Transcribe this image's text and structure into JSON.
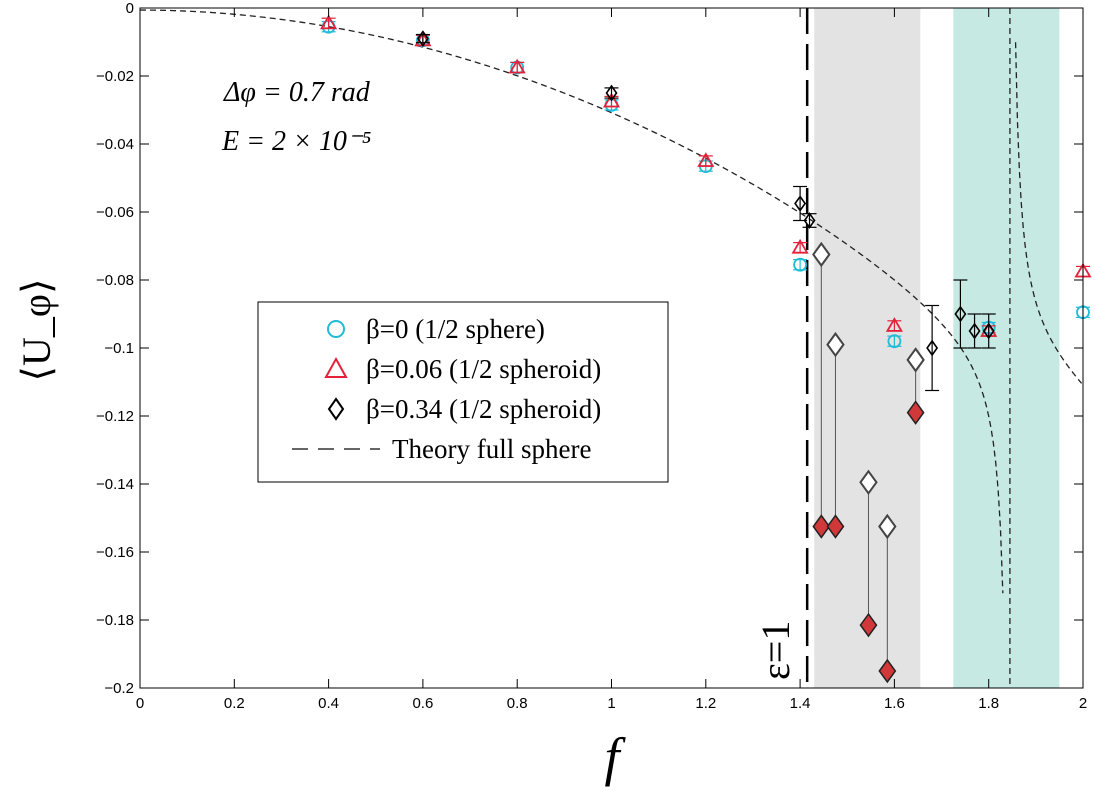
{
  "chart_data": {
    "type": "scatter",
    "xlabel": "f",
    "ylabel": "⟨U_φ⟩",
    "xlim": [
      0,
      2
    ],
    "ylim": [
      -0.2,
      0
    ],
    "grid": false,
    "legend_placement": "center-left",
    "x_ticks": [
      "0",
      "0.2",
      "0.4",
      "0.6",
      "0.8",
      "1",
      "1.2",
      "1.4",
      "1.6",
      "1.8",
      "2"
    ],
    "y_ticks": [
      "0",
      "−0.02",
      "−0.04",
      "−0.06",
      "−0.08",
      "−0.1",
      "−0.12",
      "−0.14",
      "−0.16",
      "−0.18",
      "−0.2"
    ],
    "annotations": {
      "delta_phi": "Δφ = 0.7 rad",
      "ekman": "E = 2 × 10⁻⁵",
      "epsilon_label": "ε=1"
    },
    "epsilon_line_x": 1.415,
    "shaded_regions": [
      {
        "x": [
          1.43,
          1.655
        ],
        "color": "#e3e3e3"
      },
      {
        "x": [
          1.725,
          1.95
        ],
        "color": "#c6e9e3"
      }
    ],
    "series": [
      {
        "name": "β=0 (1/2 sphere)",
        "marker": "circle",
        "color": "#22bcd6",
        "points": [
          {
            "x": 0.4,
            "y": -0.0055,
            "err": 0.0015
          },
          {
            "x": 0.6,
            "y": -0.0095,
            "err": 0.0015
          },
          {
            "x": 0.8,
            "y": -0.0175,
            "err": 0.0015
          },
          {
            "x": 1.0,
            "y": -0.0285,
            "err": 0.0015
          },
          {
            "x": 1.2,
            "y": -0.0465,
            "err": 0.0015
          },
          {
            "x": 1.4,
            "y": -0.0755,
            "err": 0.0015
          },
          {
            "x": 1.6,
            "y": -0.098,
            "err": 0.0015
          },
          {
            "x": 1.8,
            "y": -0.094,
            "err": 0.0015
          },
          {
            "x": 2.0,
            "y": -0.0895,
            "err": 0.0015
          }
        ]
      },
      {
        "name": "β=0.06 (1/2 spheroid)",
        "marker": "triangle",
        "color": "#e3213a",
        "points": [
          {
            "x": 0.4,
            "y": -0.0045,
            "err": 0.0015
          },
          {
            "x": 0.6,
            "y": -0.0095,
            "err": 0.0015
          },
          {
            "x": 0.8,
            "y": -0.0175,
            "err": 0.0015
          },
          {
            "x": 1.0,
            "y": -0.0275,
            "err": 0.0015
          },
          {
            "x": 1.2,
            "y": -0.045,
            "err": 0.0015
          },
          {
            "x": 1.4,
            "y": -0.0705,
            "err": 0.0015
          },
          {
            "x": 1.6,
            "y": -0.0935,
            "err": 0.0015
          },
          {
            "x": 1.8,
            "y": -0.095,
            "err": 0.0015
          },
          {
            "x": 2.0,
            "y": -0.0775,
            "err": 0.0015
          }
        ]
      },
      {
        "name": "β=0.34 (1/2 spheroid)",
        "marker": "diamond",
        "color": "#000000",
        "points": [
          {
            "x": 0.6,
            "y": -0.009,
            "err": 0.0012
          },
          {
            "x": 1.0,
            "y": -0.025,
            "err": 0.0015
          },
          {
            "x": 1.4,
            "y": -0.0575,
            "err": 0.005
          },
          {
            "x": 1.42,
            "y": -0.0625,
            "err": 0.002
          },
          {
            "x": 1.68,
            "y": -0.1,
            "err": 0.0125
          },
          {
            "x": 1.74,
            "y": -0.09,
            "err": 0.01
          },
          {
            "x": 1.77,
            "y": -0.095,
            "err": 0.005
          },
          {
            "x": 1.8,
            "y": -0.095,
            "err": 0.005
          }
        ]
      },
      {
        "name": "Theory full sphere",
        "marker": "line",
        "color": "#333333"
      }
    ],
    "unstable_pairs": [
      {
        "x": 1.445,
        "hollow": -0.0725,
        "filled": -0.1525
      },
      {
        "x": 1.475,
        "hollow": -0.099,
        "filled": -0.1525
      },
      {
        "x": 1.545,
        "hollow": -0.1395,
        "filled": -0.1815
      },
      {
        "x": 1.585,
        "hollow": -0.1525,
        "filled": -0.195
      },
      {
        "x": 1.645,
        "hollow": -0.1035,
        "filled": -0.119
      }
    ]
  }
}
